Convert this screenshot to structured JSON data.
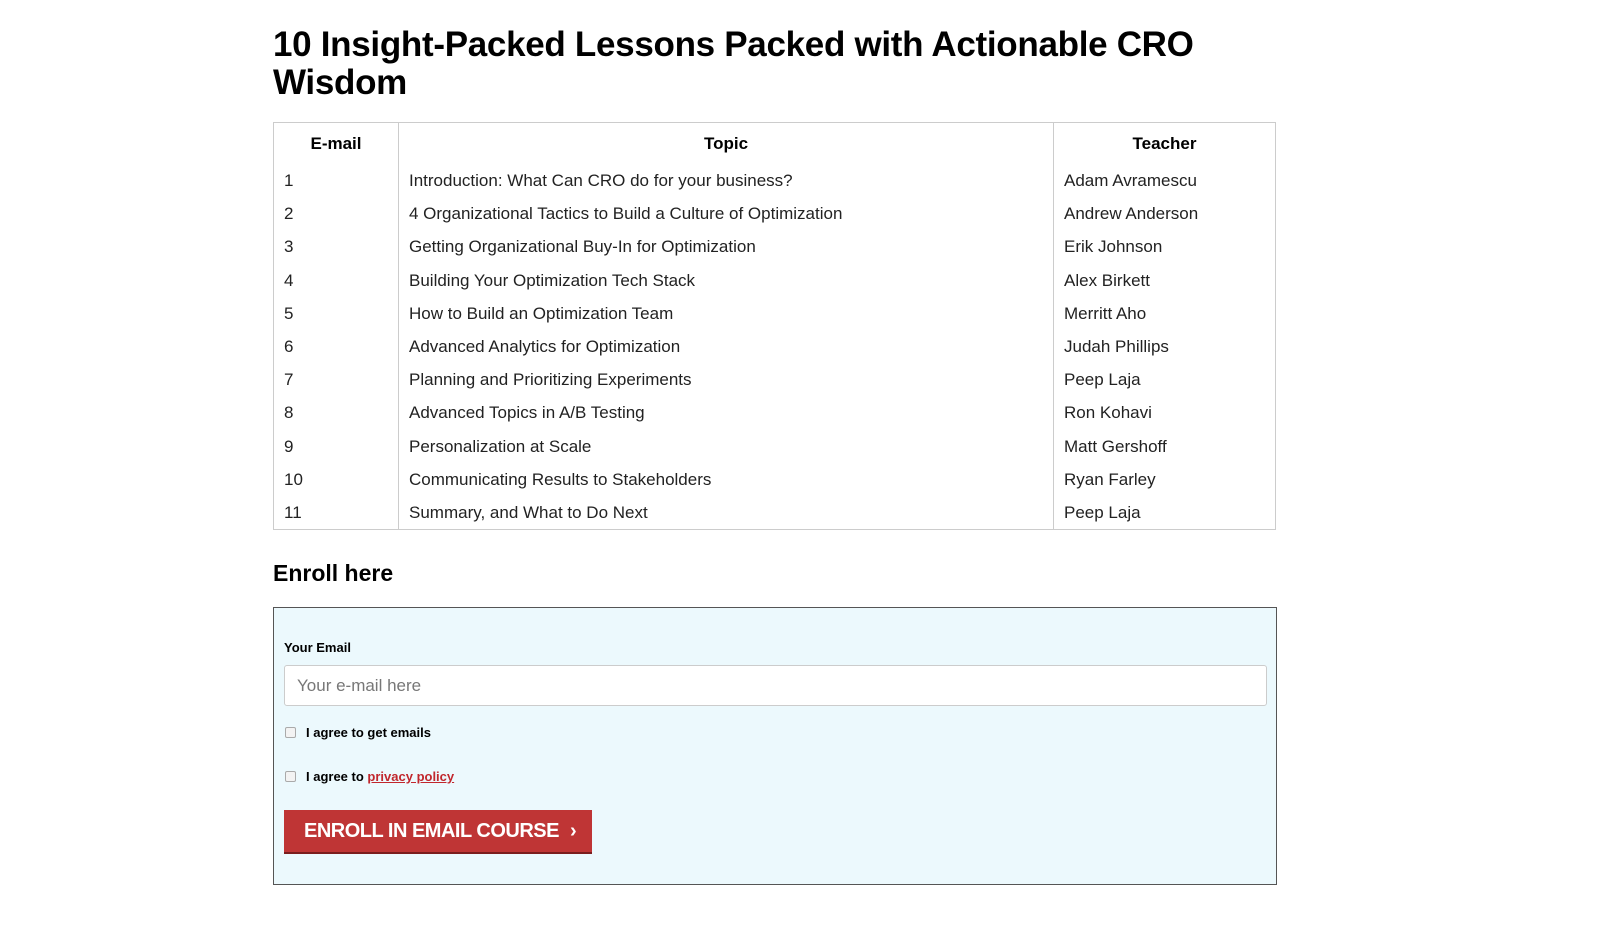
{
  "title": "10 Insight-Packed Lessons Packed with Actionable CRO Wisdom",
  "table": {
    "headers": [
      "E-mail",
      "Topic",
      "Teacher"
    ],
    "rows": [
      [
        "1",
        "Introduction: What Can CRO do for your business?",
        "Adam Avramescu"
      ],
      [
        "2",
        "4 Organizational Tactics to Build a Culture of Optimization",
        "Andrew Anderson"
      ],
      [
        "3",
        "Getting Organizational Buy-In for Optimization",
        "Erik Johnson"
      ],
      [
        "4",
        "Building Your Optimization Tech Stack",
        "Alex Birkett"
      ],
      [
        "5",
        "How to Build an Optimization Team",
        "Merritt Aho"
      ],
      [
        "6",
        "Advanced Analytics for Optimization",
        "Judah Phillips"
      ],
      [
        "7",
        "Planning and Prioritizing Experiments",
        "Peep Laja"
      ],
      [
        "8",
        "Advanced Topics in A/B Testing",
        "Ron Kohavi"
      ],
      [
        "9",
        "Personalization at Scale",
        "Matt Gershoff"
      ],
      [
        "10",
        "Communicating Results to Stakeholders",
        "Ryan Farley"
      ],
      [
        "11",
        "Summary, and What to Do Next",
        "Peep Laja"
      ]
    ]
  },
  "enroll": {
    "heading": "Enroll here",
    "email_label": "Your Email",
    "email_placeholder": "Your e-mail here",
    "email_value": "",
    "agree_emails": "I agree to get emails",
    "agree_privacy_prefix": "I agree to ",
    "privacy_link": "privacy policy",
    "button_label": "ENROLL IN EMAIL COURSE",
    "button_icon": "chevron-right-icon",
    "accent": "#bf3535"
  }
}
